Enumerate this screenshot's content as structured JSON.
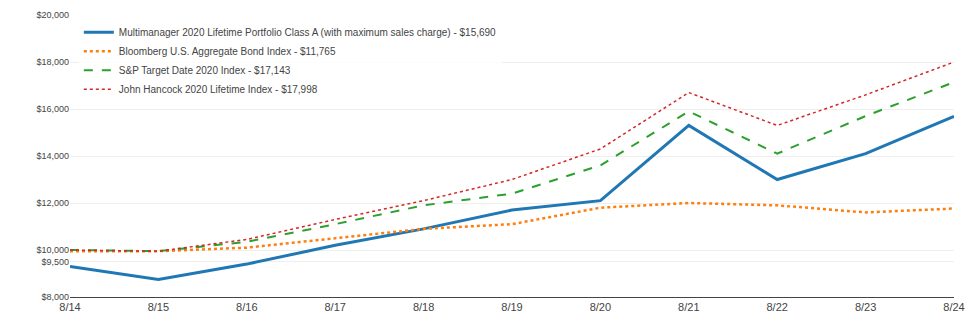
{
  "chart_data": {
    "type": "line",
    "categories": [
      "8/14",
      "8/15",
      "8/16",
      "8/17",
      "8/18",
      "8/19",
      "8/20",
      "8/21",
      "8/22",
      "8/23",
      "8/24"
    ],
    "series": [
      {
        "name": "Multimanager 2020 Lifetime Portfolio Class A (with maximum sales charge) - $15,690",
        "values": [
          9300,
          8750,
          9400,
          10200,
          10900,
          11700,
          12100,
          15300,
          13000,
          14100,
          15690
        ],
        "line_style": "solid"
      },
      {
        "name": "Bloomberg U.S. Aggregate Bond Index - $11,765",
        "values": [
          9950,
          9950,
          10100,
          10500,
          10900,
          11100,
          11800,
          12000,
          11900,
          11600,
          11765
        ],
        "line_style": "dotted"
      },
      {
        "name": "S&P Target Date 2020 Index - $17,143",
        "values": [
          10000,
          9950,
          10350,
          11100,
          11900,
          12400,
          13600,
          15900,
          14100,
          15700,
          17143
        ],
        "line_style": "dashed"
      },
      {
        "name": "John Hancock 2020 Lifetime Index - $17,998",
        "values": [
          10000,
          9950,
          10450,
          11300,
          12100,
          13000,
          14300,
          16700,
          15300,
          16600,
          17998
        ],
        "line_style": "dotted"
      }
    ],
    "ylim": [
      8000,
      20000
    ],
    "yticks": [
      {
        "value": 8000,
        "label": "$8,000"
      },
      {
        "value": 9500,
        "label": "$9,500"
      },
      {
        "value": 10000,
        "label": "$10,000"
      },
      {
        "value": 12000,
        "label": "$12,000"
      },
      {
        "value": 14000,
        "label": "$14,000"
      },
      {
        "value": 16000,
        "label": "$16,000"
      },
      {
        "value": 18000,
        "label": "$18,000"
      },
      {
        "value": 20000,
        "label": "$20,000"
      }
    ],
    "grid": true,
    "legend": "upper left"
  }
}
